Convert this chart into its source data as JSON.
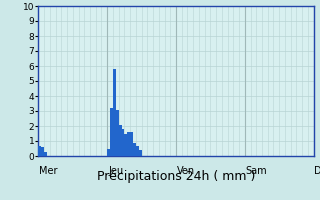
{
  "title": "",
  "xlabel": "Précipitations 24h ( mm )",
  "ylabel": "",
  "ylim": [
    0,
    10
  ],
  "yticks": [
    0,
    1,
    2,
    3,
    4,
    5,
    6,
    7,
    8,
    9,
    10
  ],
  "background_color": "#cce8e8",
  "plot_bg_color": "#d8f0f0",
  "bar_color": "#2266cc",
  "grid_color_major": "#a0b8b8",
  "grid_color_minor": "#b8d4d4",
  "axis_color": "#2244aa",
  "num_bars": 96,
  "days": [
    "Mer",
    "Jeu",
    "Ven",
    "Sam",
    "D"
  ],
  "day_positions": [
    0,
    24,
    48,
    72,
    96
  ],
  "bar_values": [
    0.7,
    0.6,
    0.3,
    0,
    0,
    0,
    0,
    0,
    0,
    0,
    0,
    0,
    0,
    0,
    0,
    0,
    0,
    0,
    0,
    0,
    0,
    0,
    0,
    0,
    0.5,
    3.2,
    5.8,
    3.1,
    2.1,
    1.8,
    1.5,
    1.6,
    1.6,
    0.9,
    0.7,
    0.4,
    0,
    0,
    0,
    0,
    0,
    0,
    0,
    0,
    0,
    0,
    0,
    0,
    0,
    0,
    0,
    0,
    0,
    0,
    0,
    0,
    0,
    0,
    0,
    0,
    0,
    0,
    0,
    0,
    0,
    0,
    0,
    0,
    0,
    0,
    0,
    0,
    0,
    0,
    0,
    0,
    0,
    0,
    0,
    0,
    0,
    0,
    0,
    0,
    0,
    0,
    0,
    0,
    0,
    0,
    0,
    0,
    0,
    0,
    0,
    0
  ],
  "xlabel_fontsize": 9,
  "tick_fontsize": 6.5,
  "day_label_fontsize": 7
}
